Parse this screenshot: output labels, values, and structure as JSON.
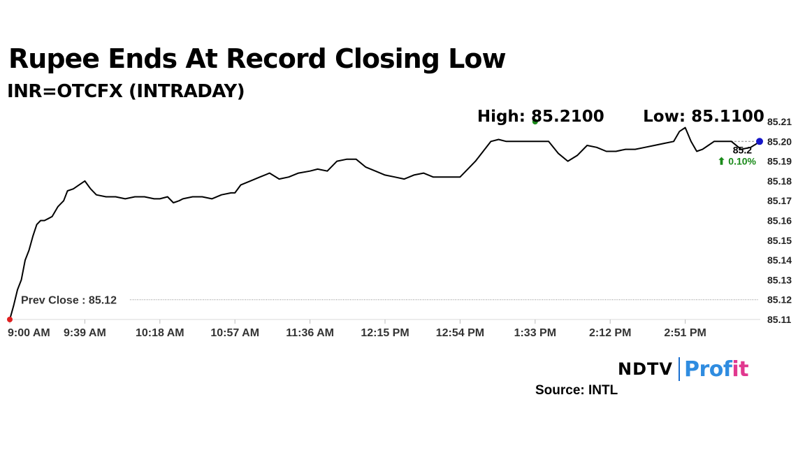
{
  "chart_data": {
    "type": "line",
    "title": "Rupee Ends At Record Closing Low",
    "subtitle": "INR=OTCFX (INTRADAY)",
    "x_ticks": [
      "9:00 AM",
      "9:39 AM",
      "10:18 AM",
      "10:57 AM",
      "11:36 AM",
      "12:15 PM",
      "12:54 PM",
      "1:33 PM",
      "2:12 PM",
      "2:51 PM"
    ],
    "x_range": [
      "9:00 AM",
      "3:30 PM"
    ],
    "y_ticks": [
      "85.21",
      "85.20",
      "85.19",
      "85.18",
      "85.17",
      "85.16",
      "85.15",
      "85.14",
      "85.13",
      "85.12",
      "85.11"
    ],
    "ylim": [
      85.11,
      85.21
    ],
    "axis_side": "right",
    "grid": false,
    "prev_close_label": "Prev Close : 85.12",
    "prev_close_value": 85.12,
    "high_label": "High: 85.2100",
    "high_value": 85.21,
    "high_time": "1:33 PM",
    "low_label": "Low: 85.1100",
    "last_value_label": "85.2",
    "last_value": 85.2,
    "change_label": "⬆ 0.10%",
    "line_color": "#000000",
    "up_color": "#1a8a1a",
    "start_marker_color": "#e02020",
    "high_marker_color": "#1a8a1a",
    "end_marker_color": "#1515c8",
    "series": [
      {
        "x": [
          "9:00 AM",
          "9:02 AM",
          "9:04 AM",
          "9:06 AM",
          "9:08 AM",
          "9:10 AM",
          "9:12 AM",
          "9:14 AM",
          "9:16 AM",
          "9:18 AM",
          "9:20 AM",
          "9:22 AM",
          "9:25 AM",
          "9:28 AM",
          "9:30 AM",
          "9:33 AM",
          "9:36 AM",
          "9:39 AM",
          "9:42 AM",
          "9:45 AM",
          "9:50 AM",
          "9:55 AM",
          "10:00 AM",
          "10:05 AM",
          "10:10 AM",
          "10:15 AM",
          "10:18 AM",
          "10:22 AM",
          "10:25 AM",
          "10:28 AM",
          "10:30 AM",
          "10:35 AM",
          "10:40 AM",
          "10:45 AM",
          "10:50 AM",
          "10:55 AM",
          "10:57 AM",
          "11:00 AM",
          "11:05 AM",
          "11:10 AM",
          "11:15 AM",
          "11:20 AM",
          "11:25 AM",
          "11:30 AM",
          "11:36 AM",
          "11:40 AM",
          "11:45 AM",
          "11:50 AM",
          "11:55 AM",
          "12:00 PM",
          "12:05 PM",
          "12:10 PM",
          "12:15 PM",
          "12:20 PM",
          "12:25 PM",
          "12:30 PM",
          "12:35 PM",
          "12:40 PM",
          "12:45 PM",
          "12:50 PM",
          "12:54 PM",
          "12:58 PM",
          "1:02 PM",
          "1:06 PM",
          "1:10 PM",
          "1:14 PM",
          "1:18 PM",
          "1:22 PM",
          "1:26 PM",
          "1:30 PM",
          "1:33 PM",
          "1:35 PM",
          "1:40 PM",
          "1:45 PM",
          "1:50 PM",
          "1:55 PM",
          "2:00 PM",
          "2:05 PM",
          "2:10 PM",
          "2:12 PM",
          "2:15 PM",
          "2:20 PM",
          "2:25 PM",
          "2:30 PM",
          "2:35 PM",
          "2:40 PM",
          "2:45 PM",
          "2:48 PM",
          "2:51 PM",
          "2:54 PM",
          "2:57 PM",
          "3:00 PM",
          "3:03 PM",
          "3:06 PM",
          "3:10 PM",
          "3:15 PM",
          "3:20 PM",
          "3:25 PM",
          "3:30 PM"
        ],
        "values": [
          85.11,
          85.117,
          85.125,
          85.13,
          85.14,
          85.145,
          85.152,
          85.158,
          85.16,
          85.16,
          85.161,
          85.162,
          85.167,
          85.17,
          85.175,
          85.176,
          85.178,
          85.18,
          85.176,
          85.173,
          85.172,
          85.172,
          85.171,
          85.172,
          85.172,
          85.171,
          85.171,
          85.172,
          85.169,
          85.17,
          85.171,
          85.172,
          85.172,
          85.171,
          85.173,
          85.174,
          85.174,
          85.178,
          85.18,
          85.182,
          85.184,
          85.181,
          85.182,
          85.184,
          85.185,
          85.186,
          85.185,
          85.19,
          85.191,
          85.191,
          85.187,
          85.185,
          85.183,
          85.182,
          85.181,
          85.183,
          85.184,
          85.182,
          85.182,
          85.182,
          85.182,
          85.186,
          85.19,
          85.195,
          85.2,
          85.201,
          85.2,
          85.2,
          85.2,
          85.2,
          85.2,
          85.2,
          85.2,
          85.194,
          85.19,
          85.193,
          85.198,
          85.197,
          85.195,
          85.195,
          85.195,
          85.196,
          85.196,
          85.197,
          85.198,
          85.199,
          85.2,
          85.205,
          85.207,
          85.2,
          85.195,
          85.196,
          85.198,
          85.2,
          85.2,
          85.2,
          85.196,
          85.197,
          85.2
        ]
      }
    ]
  },
  "logo": {
    "ndtv": "NDTV",
    "profit_a": "Prof",
    "profit_b": "i",
    "profit_c": "t"
  },
  "source": "Source: INTL"
}
